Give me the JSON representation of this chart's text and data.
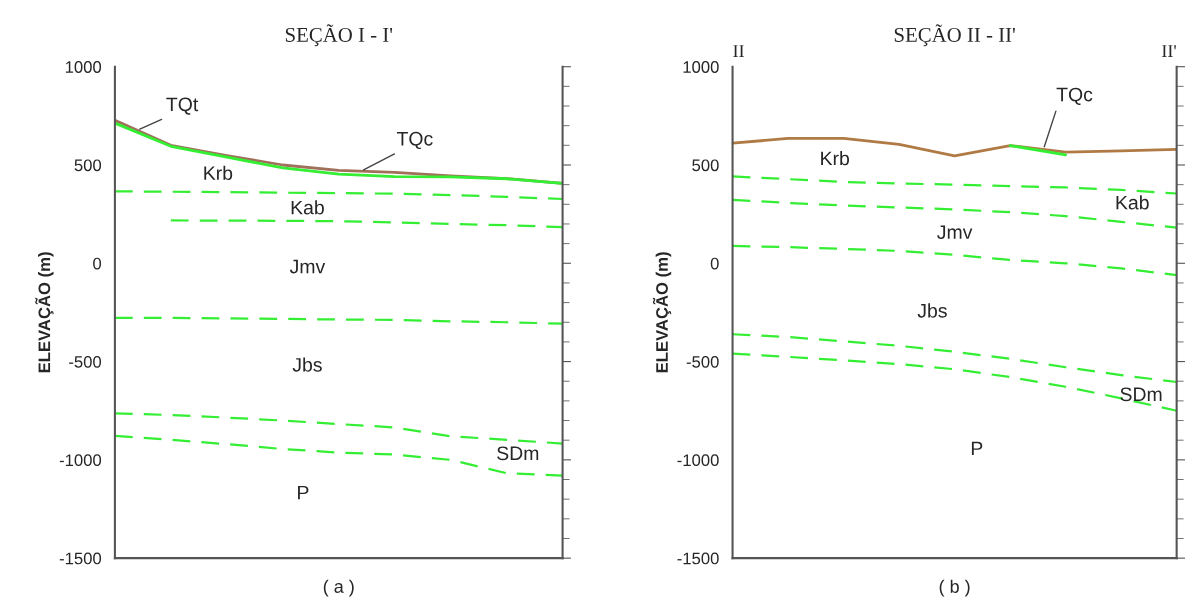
{
  "chart_data": [
    {
      "type": "line",
      "title": "SEÇÃO I - I'",
      "xlabel": "( a )",
      "ylabel": "ELEVAÇÃO (m)",
      "categories": [
        null,
        null,
        null,
        null,
        null,
        null,
        null,
        null,
        null
      ],
      "series": [
        {
          "color": "#a0705a",
          "line_style": "solid",
          "values": [
            727,
            600,
            548,
            500,
            473,
            463,
            445,
            431,
            406
          ]
        },
        {
          "color": "#33ee33",
          "line_style": "solid",
          "values": [
            713,
            595,
            540,
            485,
            453,
            441,
            440,
            430,
            406
          ]
        },
        {
          "color": "#33ee33",
          "line_style": "dashed",
          "values": [
            366,
            364,
            362,
            359,
            357,
            354,
            347,
            338,
            327
          ]
        },
        {
          "color": "#33ee33",
          "line_style": "dashed",
          "values": [
            null,
            218,
            217,
            216,
            214,
            208,
            200,
            194,
            184
          ]
        },
        {
          "color": "#33ee33",
          "line_style": "dashed",
          "values": [
            -278,
            -278,
            -280,
            -283,
            -286,
            -288,
            -295,
            -300,
            -307
          ]
        },
        {
          "color": "#33ee33",
          "line_style": "dashed",
          "values": [
            -763,
            -772,
            -785,
            -800,
            -818,
            -835,
            -880,
            -898,
            -917
          ]
        },
        {
          "color": "#33ee33",
          "line_style": "dashed",
          "values": [
            -878,
            -898,
            -920,
            -945,
            -963,
            -973,
            -1000,
            -1068,
            -1080
          ]
        }
      ],
      "ylim": [
        -1500,
        1000
      ],
      "yticks": [
        -1500,
        -1000,
        -500,
        0,
        500,
        1000
      ],
      "grid": false,
      "legend": false,
      "marker": "none",
      "annotations": [
        "TQt",
        "TQc",
        "Krb",
        "Kab",
        "Jmv",
        "Jbs",
        "SDm",
        "P"
      ]
    },
    {
      "type": "line",
      "title": "SEÇÃO II - II'",
      "xlabel": "( b )",
      "ylabel": "ELEVAÇÃO (m)",
      "categories": [
        null,
        null,
        null,
        null,
        null,
        null,
        null,
        null,
        null
      ],
      "series": [
        {
          "color": "#b07a45",
          "line_style": "solid",
          "values": [
            611,
            635,
            635,
            605,
            546,
            599,
            566,
            572,
            580
          ]
        },
        {
          "color": "#33ee33",
          "line_style": "solid",
          "values": [
            null,
            null,
            null,
            null,
            null,
            599,
            552,
            null,
            null
          ]
        },
        {
          "color": "#33ee33",
          "line_style": "dashed",
          "values": [
            442,
            428,
            414,
            406,
            400,
            392,
            386,
            373,
            355
          ]
        },
        {
          "color": "#33ee33",
          "line_style": "dashed",
          "values": [
            323,
            307,
            294,
            284,
            274,
            260,
            240,
            211,
            181
          ]
        },
        {
          "color": "#33ee33",
          "line_style": "dashed",
          "values": [
            88,
            82,
            73,
            63,
            43,
            17,
            0,
            -26,
            -60
          ]
        },
        {
          "color": "#33ee33",
          "line_style": "dashed",
          "values": [
            -361,
            -375,
            -397,
            -420,
            -450,
            -486,
            -529,
            -569,
            -604
          ]
        },
        {
          "color": "#33ee33",
          "line_style": "dashed",
          "values": [
            -460,
            -476,
            -494,
            -513,
            -539,
            -579,
            -628,
            -687,
            -750
          ]
        }
      ],
      "ylim": [
        -1500,
        1000
      ],
      "yticks": [
        -1500,
        -1000,
        -500,
        0,
        500,
        1000
      ],
      "grid": false,
      "legend": false,
      "marker": "none",
      "annotations": [
        "II",
        "II'",
        "TQc",
        "Krb",
        "Kab",
        "Jmv",
        "Jbs",
        "SDm",
        "P"
      ]
    }
  ]
}
